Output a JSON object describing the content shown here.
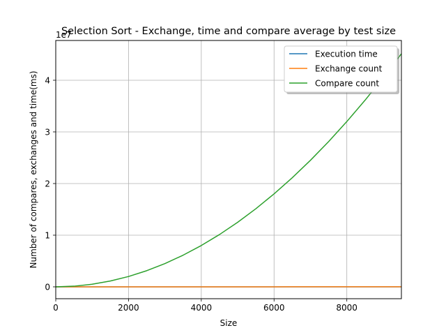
{
  "chart_data": {
    "type": "line",
    "title": "Selection Sort - Exchange, time and compare average by test size",
    "xlabel": "Size",
    "ylabel": "Number of compares, exchanges and time(ms)",
    "y_offset_label": "1e7",
    "y_scale_factor": 10000000,
    "xlim": [
      0,
      9500
    ],
    "ylim": [
      -0.23,
      4.77
    ],
    "xticks": [
      0,
      2000,
      4000,
      6000,
      8000
    ],
    "xtick_labels": [
      "0",
      "2000",
      "4000",
      "6000",
      "8000"
    ],
    "yticks": [
      0,
      1,
      2,
      3,
      4
    ],
    "ytick_labels": [
      "0",
      "1",
      "2",
      "3",
      "4"
    ],
    "grid": true,
    "legend_position": "top-right",
    "x": [
      0,
      500,
      1000,
      1500,
      2000,
      2500,
      3000,
      3500,
      4000,
      4500,
      5000,
      5500,
      6000,
      6500,
      7000,
      7500,
      8000,
      8500,
      9000,
      9500
    ],
    "series": [
      {
        "name": "Execution time",
        "color": "#1f77b4",
        "values": [
          0,
          0,
          0,
          0,
          0,
          0,
          0,
          0,
          0,
          0,
          0,
          0,
          0,
          0,
          0,
          0,
          0,
          0,
          0,
          0
        ]
      },
      {
        "name": "Exchange count",
        "color": "#ff7f0e",
        "values": [
          0,
          5e-05,
          0.0001,
          0.00015,
          0.0002,
          0.00025,
          0.0003,
          0.00035,
          0.0004,
          0.00045,
          0.0005,
          0.00055,
          0.0006,
          0.00065,
          0.0007,
          0.00075,
          0.0008,
          0.00085,
          0.0009,
          0.00095
        ]
      },
      {
        "name": "Compare count",
        "color": "#2ca02c",
        "values": [
          0,
          0.0125,
          0.05,
          0.1125,
          0.2,
          0.3125,
          0.45,
          0.6125,
          0.8,
          1.0125,
          1.25,
          1.5125,
          1.8,
          2.1125,
          2.45,
          2.8125,
          3.2,
          3.6125,
          4.05,
          4.5125
        ]
      }
    ]
  }
}
